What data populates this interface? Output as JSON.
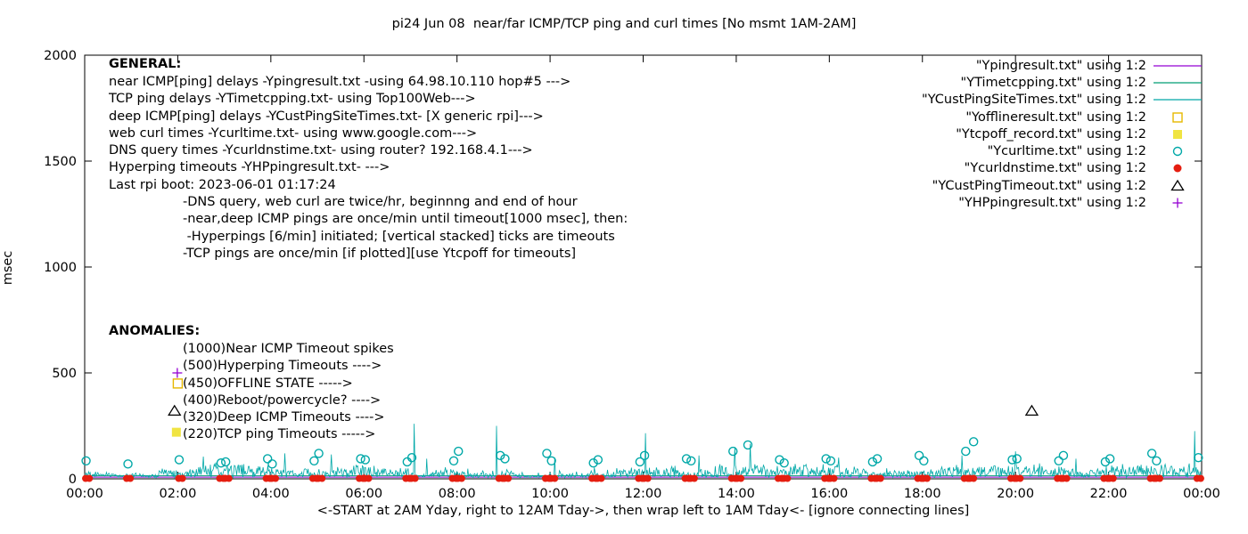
{
  "title": "pi24 Jun 08  near/far ICMP/TCP ping and curl times [No msmt 1AM-2AM]",
  "axes": {
    "ylabel": "msec",
    "xlabel": "<-START at 2AM Yday, right to 12AM Tday->, then wrap left to 1AM Tday<- [ignore connecting lines]",
    "xticks": [
      {
        "h": 0,
        "label": "00:00"
      },
      {
        "h": 2,
        "label": "02:00"
      },
      {
        "h": 4,
        "label": "04:00"
      },
      {
        "h": 6,
        "label": "06:00"
      },
      {
        "h": 8,
        "label": "08:00"
      },
      {
        "h": 10,
        "label": "10:00"
      },
      {
        "h": 12,
        "label": "12:00"
      },
      {
        "h": 14,
        "label": "14:00"
      },
      {
        "h": 16,
        "label": "16:00"
      },
      {
        "h": 18,
        "label": "18:00"
      },
      {
        "h": 20,
        "label": "20:00"
      },
      {
        "h": 22,
        "label": "22:00"
      },
      {
        "h": 24,
        "label": "00:00"
      }
    ],
    "yticks": [
      {
        "v": 0,
        "label": "0"
      },
      {
        "v": 500,
        "label": "500"
      },
      {
        "v": 1000,
        "label": "1000"
      },
      {
        "v": 1500,
        "label": "1500"
      },
      {
        "v": 2000,
        "label": "2000"
      }
    ]
  },
  "general": {
    "header": "GENERAL:",
    "body": "near ICMP[ping] delays -Ypingresult.txt -using 64.98.10.110 hop#5 --->\nTCP ping delays -YTimetcpping.txt- using Top100Web--->\ndeep ICMP[ping] delays -YCustPingSiteTimes.txt- [X generic rpi]--->\nweb curl times -Ycurltime.txt- using www.google.com--->\nDNS query times -Ycurldnstime.txt- using router? 192.168.4.1--->\nHyperping timeouts -YHPpingresult.txt- --->\nLast rpi boot: 2023-06-01 01:17:24\n                  -DNS query, web curl are twice/hr, beginnng and end of hour\n                  -near,deep ICMP pings are once/min until timeout[1000 msec], then:\n                   -Hyperpings [6/min] initiated; [vertical stacked] ticks are timeouts\n                  -TCP pings are once/min [if plotted][use Ytcpoff for timeouts]"
  },
  "anomalies": {
    "header": "ANOMALIES:",
    "body": "(1000)Near ICMP Timeout spikes\n(500)Hyperping Timeouts ---->\n(450)OFFLINE STATE ----->\n(400)Reboot/powercycle? ---->\n(320)Deep ICMP Timeouts ---->\n(220)TCP ping Timeouts ----->"
  },
  "legend": {
    "items": [
      {
        "label": "\"Ypingresult.txt\" using 1:2",
        "glyph": "line",
        "color": "#9400d3"
      },
      {
        "label": "\"YTimetcpping.txt\" using 1:2",
        "glyph": "line",
        "color": "#009e73"
      },
      {
        "label": "\"YCustPingSiteTimes.txt\" using 1:2",
        "glyph": "line",
        "color": "#00a8a8"
      },
      {
        "label": "\"Yofflineresult.txt\" using 1:2",
        "glyph": "square-open",
        "color": "#e6b800"
      },
      {
        "label": "\"Ytcpoff_record.txt\" using 1:2",
        "glyph": "square-filled",
        "color": "#f0e442"
      },
      {
        "label": "\"Ycurltime.txt\" using 1:2",
        "glyph": "circle-open",
        "color": "#00a8a8"
      },
      {
        "label": "\"Ycurldnstime.txt\" using 1:2",
        "glyph": "circle-filled",
        "color": "#e51e10"
      },
      {
        "label": "\"YCustPingTimeout.txt\" using 1:2",
        "glyph": "triangle-open",
        "color": "#000000"
      },
      {
        "label": "\"YHPpingresult.txt\" using 1:2",
        "glyph": "plus",
        "color": "#9400d3"
      }
    ]
  },
  "chart_data": {
    "type": "line",
    "title": "pi24 Jun 08  near/far ICMP/TCP ping and curl times [No msmt 1AM-2AM]",
    "xlabel_units": "time of day (hours)",
    "ylabel": "msec",
    "xlim": [
      0,
      24
    ],
    "ylim": [
      0,
      2000
    ],
    "grid": false,
    "legend_position": "top-right-inside",
    "near_line": {
      "name": "Ypingresult.txt near ICMP ping delay",
      "y": 8,
      "color": "#9400d3"
    },
    "tcp_line": {
      "name": "YTimetcpping.txt TCP ping delay",
      "y": 14,
      "color": "#009e73"
    },
    "deep_trace": {
      "name": "YCustPingSiteTimes.txt deep ICMP ping delay",
      "color": "#00a8a8",
      "noise": {
        "seed": 42,
        "base": 5,
        "env_min": 12,
        "env_max": 65
      },
      "spikes": [
        [
          2.55,
          105
        ],
        [
          4.3,
          120
        ],
        [
          5.3,
          115
        ],
        [
          7.08,
          260
        ],
        [
          7.35,
          95
        ],
        [
          8.85,
          250
        ],
        [
          10.1,
          100
        ],
        [
          12.05,
          215
        ],
        [
          13.2,
          110
        ],
        [
          13.97,
          150
        ],
        [
          14.3,
          165
        ],
        [
          16.2,
          100
        ],
        [
          18.85,
          110
        ],
        [
          20.0,
          130
        ],
        [
          21.3,
          95
        ],
        [
          23.85,
          225
        ]
      ]
    },
    "curl_points": {
      "name": "Ycurltime.txt web curl times",
      "color": "#00a8a8",
      "points": [
        [
          0.03,
          85
        ],
        [
          0.93,
          70
        ],
        [
          2.03,
          90
        ],
        [
          2.93,
          75
        ],
        [
          3.03,
          80
        ],
        [
          3.93,
          95
        ],
        [
          4.03,
          70
        ],
        [
          4.93,
          85
        ],
        [
          5.03,
          120
        ],
        [
          5.93,
          95
        ],
        [
          6.03,
          90
        ],
        [
          6.93,
          80
        ],
        [
          7.03,
          100
        ],
        [
          7.93,
          85
        ],
        [
          8.03,
          130
        ],
        [
          8.93,
          110
        ],
        [
          9.03,
          95
        ],
        [
          9.93,
          120
        ],
        [
          10.03,
          85
        ],
        [
          10.93,
          75
        ],
        [
          11.03,
          90
        ],
        [
          11.93,
          80
        ],
        [
          12.03,
          110
        ],
        [
          12.93,
          95
        ],
        [
          13.03,
          85
        ],
        [
          13.93,
          130
        ],
        [
          14.25,
          160
        ],
        [
          14.93,
          90
        ],
        [
          15.03,
          75
        ],
        [
          15.93,
          95
        ],
        [
          16.03,
          85
        ],
        [
          16.93,
          80
        ],
        [
          17.03,
          95
        ],
        [
          17.93,
          110
        ],
        [
          18.03,
          85
        ],
        [
          18.93,
          130
        ],
        [
          19.1,
          175
        ],
        [
          19.93,
          90
        ],
        [
          20.03,
          95
        ],
        [
          20.93,
          85
        ],
        [
          21.03,
          110
        ],
        [
          21.93,
          80
        ],
        [
          22.03,
          95
        ],
        [
          22.93,
          120
        ],
        [
          23.03,
          85
        ],
        [
          23.93,
          100
        ]
      ]
    },
    "dns_points": {
      "name": "Ycurldnstime.txt DNS query times",
      "color": "#e51e10",
      "value": 2,
      "hours": [
        0,
        2,
        3,
        4,
        5,
        6,
        7,
        8,
        9,
        10,
        11,
        12,
        13,
        14,
        15,
        16,
        17,
        18,
        19,
        20,
        21,
        22,
        23
      ],
      "offsets": [
        0.02,
        0.1,
        0.9,
        0.98
      ]
    },
    "markers": {
      "triangle": {
        "name": "YCustPingTimeout.txt deep ICMP timeout",
        "color": "#000000",
        "points": [
          [
            1.93,
            320
          ],
          [
            20.35,
            320
          ]
        ]
      },
      "plus": {
        "name": "YHPpingresult.txt hyperping timeout",
        "color": "#9400d3",
        "points": [
          [
            1.99,
            500
          ]
        ]
      },
      "square_open": {
        "name": "Yofflineresult.txt offline state",
        "color": "#e6b800",
        "points": [
          [
            2.0,
            450
          ]
        ]
      },
      "square_filled": {
        "name": "Ytcpoff_record.txt TCP ping timeout",
        "color": "#f0e442",
        "points": [
          [
            1.97,
            220
          ]
        ]
      }
    }
  }
}
